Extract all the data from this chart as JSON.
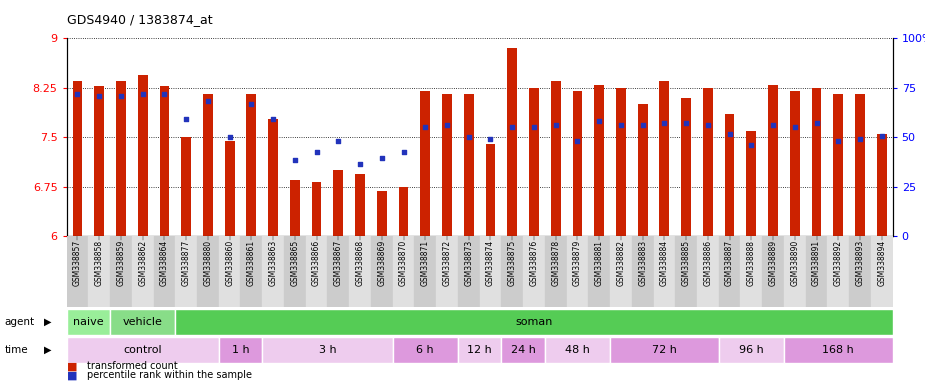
{
  "title": "GDS4940 / 1383874_at",
  "samples": [
    "GSM338857",
    "GSM338858",
    "GSM338859",
    "GSM338862",
    "GSM338864",
    "GSM338877",
    "GSM338880",
    "GSM338860",
    "GSM338861",
    "GSM338863",
    "GSM338865",
    "GSM338866",
    "GSM338867",
    "GSM338868",
    "GSM338869",
    "GSM338870",
    "GSM338871",
    "GSM338872",
    "GSM338873",
    "GSM338874",
    "GSM338875",
    "GSM338876",
    "GSM338878",
    "GSM338879",
    "GSM338881",
    "GSM338882",
    "GSM338883",
    "GSM338884",
    "GSM338885",
    "GSM338886",
    "GSM338887",
    "GSM338888",
    "GSM338889",
    "GSM338890",
    "GSM338891",
    "GSM338892",
    "GSM338893",
    "GSM338894"
  ],
  "red_values": [
    8.35,
    8.28,
    8.35,
    8.45,
    8.28,
    7.5,
    8.15,
    7.45,
    8.15,
    7.78,
    6.85,
    6.82,
    7.0,
    6.95,
    6.68,
    6.75,
    8.2,
    8.15,
    8.15,
    7.4,
    8.85,
    8.25,
    8.35,
    8.2,
    8.3,
    8.25,
    8.0,
    8.35,
    8.1,
    8.25,
    7.85,
    7.6,
    8.3,
    8.2,
    8.25,
    8.15,
    8.15,
    7.55
  ],
  "blue_values": [
    8.15,
    8.12,
    8.12,
    8.15,
    8.15,
    7.78,
    8.05,
    7.5,
    8.0,
    7.78,
    7.15,
    7.28,
    7.45,
    7.1,
    7.18,
    7.28,
    7.65,
    7.68,
    7.5,
    7.48,
    7.65,
    7.65,
    7.68,
    7.45,
    7.75,
    7.68,
    7.68,
    7.72,
    7.72,
    7.68,
    7.55,
    7.38,
    7.68,
    7.65,
    7.72,
    7.45,
    7.48,
    7.52
  ],
  "y_min": 6.0,
  "y_max": 9.0,
  "y_ticks_left": [
    6,
    6.75,
    7.5,
    8.25,
    9
  ],
  "y_ticks_right": [
    0,
    25,
    50,
    75,
    100
  ],
  "bar_color": "#CC2200",
  "marker_color": "#2233BB",
  "agent_groups": [
    {
      "label": "naive",
      "start": 0,
      "end": 2,
      "color": "#99EE99"
    },
    {
      "label": "vehicle",
      "start": 2,
      "end": 5,
      "color": "#88DD88"
    },
    {
      "label": "soman",
      "start": 5,
      "end": 38,
      "color": "#55CC55"
    }
  ],
  "time_groups": [
    {
      "label": "control",
      "start": 0,
      "end": 7,
      "color": "#EECCEE"
    },
    {
      "label": "1 h",
      "start": 7,
      "end": 9,
      "color": "#DD99DD"
    },
    {
      "label": "3 h",
      "start": 9,
      "end": 15,
      "color": "#EECCEE"
    },
    {
      "label": "6 h",
      "start": 15,
      "end": 18,
      "color": "#DD99DD"
    },
    {
      "label": "12 h",
      "start": 18,
      "end": 20,
      "color": "#EECCEE"
    },
    {
      "label": "24 h",
      "start": 20,
      "end": 22,
      "color": "#DD99DD"
    },
    {
      "label": "48 h",
      "start": 22,
      "end": 25,
      "color": "#EECCEE"
    },
    {
      "label": "72 h",
      "start": 25,
      "end": 30,
      "color": "#DD99DD"
    },
    {
      "label": "96 h",
      "start": 30,
      "end": 33,
      "color": "#EECCEE"
    },
    {
      "label": "168 h",
      "start": 33,
      "end": 38,
      "color": "#DD99DD"
    }
  ]
}
